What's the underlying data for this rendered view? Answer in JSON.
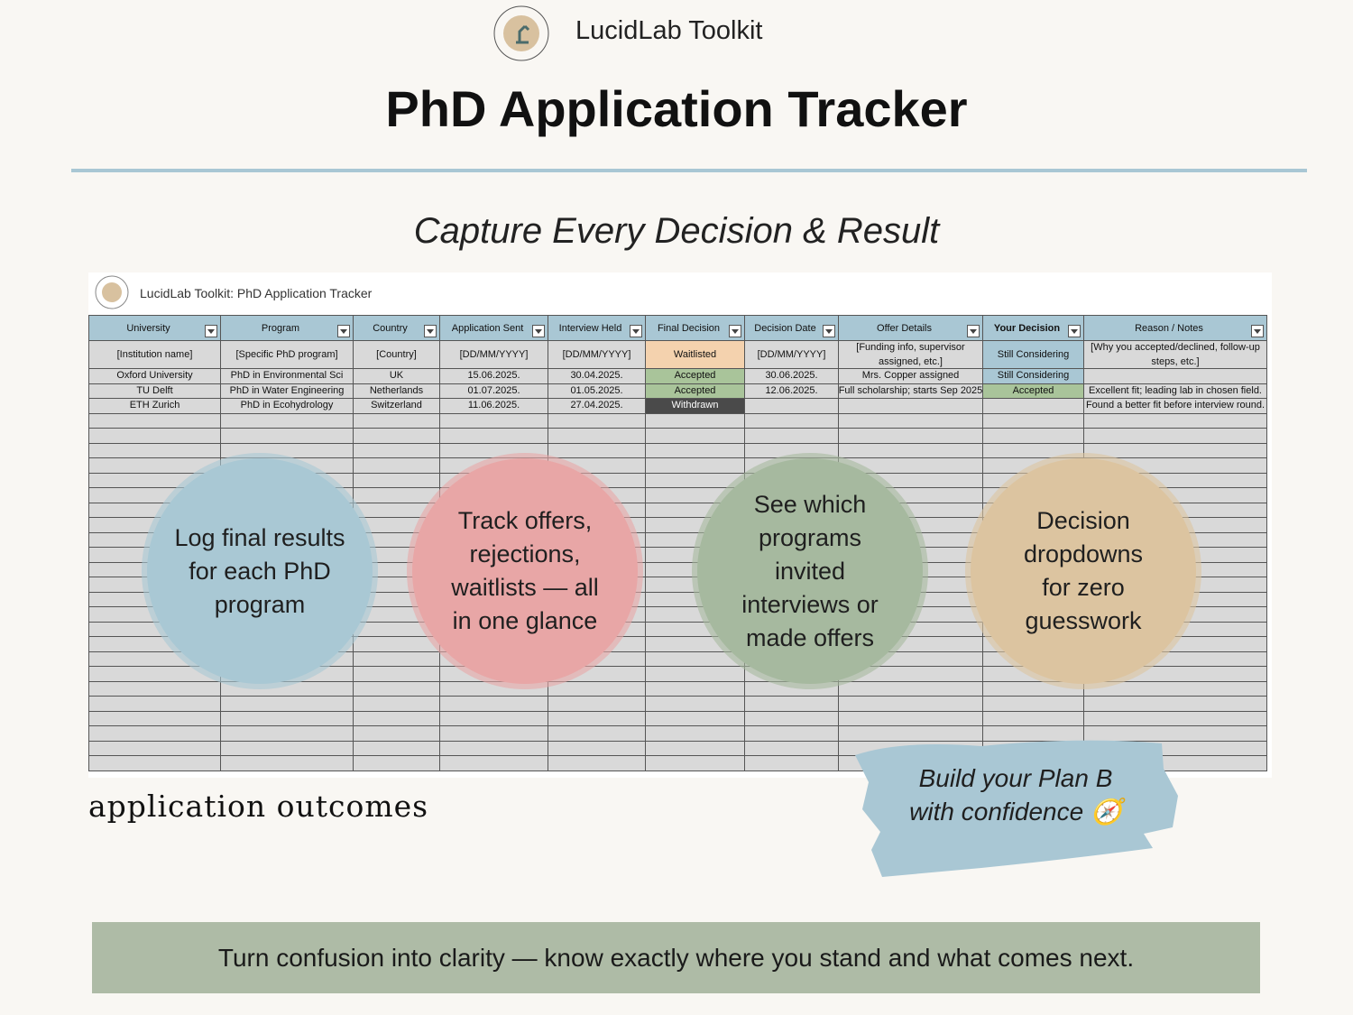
{
  "header": {
    "brand": "LucidLab Toolkit",
    "title": "PhD Application Tracker",
    "subtitle": "Capture Every Decision & Result"
  },
  "sheet": {
    "title": "LucidLab Toolkit: PhD Application Tracker",
    "columns": [
      "University",
      "Program",
      "Country",
      "Application Sent",
      "Interview Held",
      "Final Decision",
      "Decision Date",
      "Offer Details",
      "Your Decision",
      "Reason / Notes"
    ],
    "rows": [
      [
        "[Institution name]",
        "[Specific PhD program]",
        "[Country]",
        "[DD/MM/YYYY]",
        "[DD/MM/YYYY]",
        "Waitlisted",
        "[DD/MM/YYYY]",
        "[Funding info, supervisor assigned, etc.]",
        "Still Considering",
        "[Why you accepted/declined, follow-up steps, etc.]"
      ],
      [
        "Oxford University",
        "PhD in Environmental Sci",
        "UK",
        "15.06.2025.",
        "30.04.2025.",
        "Accepted",
        "30.06.2025.",
        "Mrs. Copper assigned",
        "Still Considering",
        null
      ],
      [
        "TU Delft",
        "PhD in Water Engineering",
        "Netherlands",
        "01.07.2025.",
        "01.05.2025.",
        "Accepted",
        "12.06.2025.",
        "Full scholarship; starts Sep 2025",
        "Accepted",
        "Excellent fit; leading lab in chosen field."
      ],
      [
        "ETH Zurich",
        "PhD in Ecohydrology",
        "Switzerland",
        "11.06.2025.",
        "27.04.2025.",
        "Withdrawn",
        null,
        null,
        null,
        "Found a better fit before interview round."
      ]
    ]
  },
  "callouts": [
    [
      "Log final results",
      "for each PhD",
      "program"
    ],
    [
      "Track offers,",
      "rejections,",
      "waitlists — all",
      "in one glance"
    ],
    [
      "See which",
      "programs",
      "invited",
      "interviews or",
      "made offers"
    ],
    [
      "Decision",
      "dropdowns",
      "for zero",
      "guesswork"
    ]
  ],
  "caption": "application outcomes",
  "badge": [
    "Build your Plan B",
    "with confidence 🧭"
  ],
  "footer": "Turn confusion into clarity — know exactly where you stand and what comes next."
}
